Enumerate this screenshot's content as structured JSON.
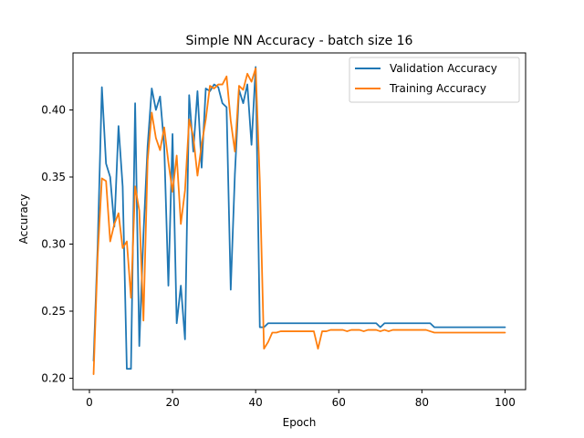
{
  "chart_data": {
    "type": "line",
    "title": "Simple NN Accuracy - batch size 16",
    "xlabel": "Epoch",
    "ylabel": "Accuracy",
    "xlim": [
      -3.95,
      104.95
    ],
    "ylim": [
      0.1915,
      0.4425
    ],
    "xticks": [
      0,
      20,
      40,
      60,
      80,
      100
    ],
    "yticks": [
      0.2,
      0.25,
      0.3,
      0.35,
      0.4
    ],
    "xtick_labels": [
      "0",
      "20",
      "40",
      "60",
      "80",
      "100"
    ],
    "ytick_labels": [
      "0.20",
      "0.25",
      "0.30",
      "0.35",
      "0.40"
    ],
    "grid": false,
    "legend_position": "upper right",
    "series": [
      {
        "name": "Validation Accuracy",
        "color": "#1f77b4",
        "values": [
          0.213,
          0.3,
          0.417,
          0.36,
          0.35,
          0.313,
          0.388,
          0.343,
          0.207,
          0.207,
          0.405,
          0.224,
          0.307,
          0.373,
          0.416,
          0.4,
          0.41,
          0.373,
          0.269,
          0.382,
          0.241,
          0.269,
          0.229,
          0.411,
          0.369,
          0.414,
          0.357,
          0.416,
          0.414,
          0.419,
          0.417,
          0.405,
          0.402,
          0.266,
          0.352,
          0.415,
          0.405,
          0.419,
          0.374,
          0.432,
          0.238,
          0.238,
          0.241,
          0.241,
          0.241,
          0.241,
          0.241,
          0.241,
          0.241,
          0.241,
          0.241,
          0.241,
          0.241,
          0.241,
          0.241,
          0.241,
          0.241,
          0.241,
          0.241,
          0.241,
          0.241,
          0.241,
          0.241,
          0.241,
          0.241,
          0.241,
          0.241,
          0.241,
          0.241,
          0.238,
          0.241,
          0.241,
          0.241,
          0.241,
          0.241,
          0.241,
          0.241,
          0.241,
          0.241,
          0.241,
          0.241,
          0.241,
          0.238,
          0.238,
          0.238,
          0.238,
          0.238,
          0.238,
          0.238,
          0.238,
          0.238,
          0.238,
          0.238,
          0.238,
          0.238,
          0.238,
          0.238,
          0.238,
          0.238,
          0.238
        ]
      },
      {
        "name": "Training Accuracy",
        "color": "#ff7f0e",
        "values": [
          0.203,
          0.292,
          0.349,
          0.347,
          0.302,
          0.315,
          0.323,
          0.297,
          0.302,
          0.26,
          0.343,
          0.325,
          0.243,
          0.362,
          0.398,
          0.379,
          0.37,
          0.387,
          0.361,
          0.339,
          0.366,
          0.315,
          0.34,
          0.393,
          0.38,
          0.351,
          0.374,
          0.393,
          0.418,
          0.416,
          0.419,
          0.419,
          0.425,
          0.392,
          0.369,
          0.418,
          0.415,
          0.427,
          0.421,
          0.431,
          0.347,
          0.222,
          0.227,
          0.234,
          0.234,
          0.235,
          0.235,
          0.235,
          0.235,
          0.235,
          0.235,
          0.235,
          0.235,
          0.235,
          0.222,
          0.235,
          0.235,
          0.236,
          0.236,
          0.236,
          0.236,
          0.235,
          0.236,
          0.236,
          0.236,
          0.235,
          0.236,
          0.236,
          0.236,
          0.235,
          0.236,
          0.235,
          0.236,
          0.236,
          0.236,
          0.236,
          0.236,
          0.236,
          0.236,
          0.236,
          0.236,
          0.235,
          0.234,
          0.234,
          0.234,
          0.234,
          0.234,
          0.234,
          0.234,
          0.234,
          0.234,
          0.234,
          0.234,
          0.234,
          0.234,
          0.234,
          0.234,
          0.234,
          0.234,
          0.234
        ]
      }
    ]
  }
}
